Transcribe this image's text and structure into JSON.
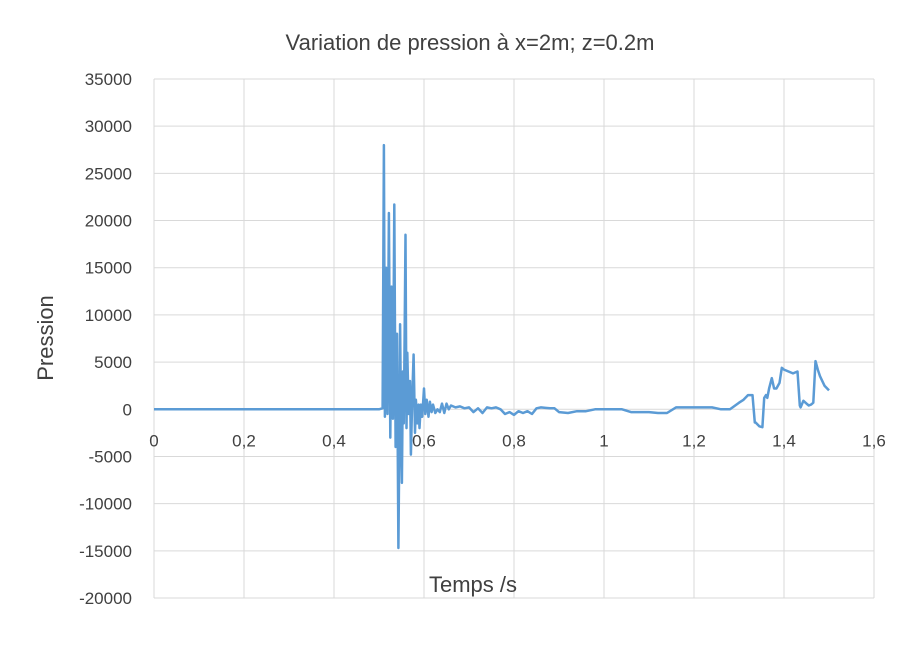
{
  "chart_data": {
    "type": "line",
    "title": "Variation de pression à x=2m; z=0.2m",
    "xlabel": "Temps /s",
    "ylabel": "Pression",
    "xlim": [
      0,
      1.6
    ],
    "ylim": [
      -20000,
      35000
    ],
    "x_ticks": [
      "0",
      "0,2",
      "0,4",
      "0,6",
      "0,8",
      "1",
      "1,2",
      "1,4",
      "1,6"
    ],
    "y_ticks": [
      "35000",
      "30000",
      "25000",
      "20000",
      "15000",
      "10000",
      "5000",
      "0",
      "-5000",
      "-10000",
      "-15000",
      "-20000"
    ],
    "grid": true,
    "legend": "none",
    "colors": {
      "series": "#5b9bd5",
      "grid": "#d9d9d9",
      "text": "#404040"
    },
    "series": [
      {
        "x": [
          0,
          0.1,
          0.2,
          0.3,
          0.4,
          0.5,
          0.508,
          0.511,
          0.513,
          0.516,
          0.519,
          0.522,
          0.525,
          0.528,
          0.531,
          0.534,
          0.537,
          0.54,
          0.543,
          0.545,
          0.547,
          0.549,
          0.551,
          0.553,
          0.555,
          0.557,
          0.559,
          0.561,
          0.563,
          0.566,
          0.569,
          0.571,
          0.574,
          0.577,
          0.58,
          0.582,
          0.585,
          0.588,
          0.59,
          0.593,
          0.596,
          0.6,
          0.603,
          0.606,
          0.61,
          0.613,
          0.617,
          0.62,
          0.625,
          0.63,
          0.635,
          0.64,
          0.645,
          0.65,
          0.655,
          0.66,
          0.67,
          0.68,
          0.69,
          0.7,
          0.71,
          0.72,
          0.73,
          0.74,
          0.75,
          0.76,
          0.77,
          0.78,
          0.79,
          0.8,
          0.81,
          0.82,
          0.83,
          0.84,
          0.85,
          0.86,
          0.87,
          0.88,
          0.89,
          0.9,
          0.92,
          0.94,
          0.96,
          0.98,
          1.0,
          1.02,
          1.04,
          1.06,
          1.08,
          1.1,
          1.12,
          1.14,
          1.16,
          1.17,
          1.2,
          1.24,
          1.26,
          1.28,
          1.3,
          1.31,
          1.32,
          1.33,
          1.335,
          1.337,
          1.345,
          1.352,
          1.356,
          1.36,
          1.363,
          1.367,
          1.373,
          1.378,
          1.383,
          1.39,
          1.395,
          1.4,
          1.41,
          1.42,
          1.43,
          1.435,
          1.437,
          1.443,
          1.45,
          1.455,
          1.46,
          1.465,
          1.47,
          1.475,
          1.48,
          1.49,
          1.5
        ],
        "values": [
          0,
          0,
          0,
          0,
          0,
          0,
          100,
          28000,
          -800,
          15000,
          -500,
          20800,
          -3000,
          13000,
          -1000,
          21700,
          -4000,
          8000,
          -14700,
          -4000,
          9000,
          -2500,
          -7800,
          4000,
          -1500,
          7500,
          18500,
          -2000,
          6000,
          -500,
          3000,
          -4800,
          1500,
          5800,
          -2500,
          1000,
          -1500,
          500,
          -2000,
          500,
          -800,
          2200,
          -500,
          1000,
          -800,
          800,
          -300,
          500,
          -400,
          0,
          -300,
          600,
          -400,
          600,
          0,
          400,
          200,
          300,
          100,
          200,
          -300,
          100,
          -400,
          200,
          100,
          200,
          0,
          -500,
          -300,
          -600,
          -200,
          -400,
          -200,
          -500,
          100,
          200,
          150,
          100,
          100,
          -300,
          -400,
          -200,
          -200,
          0,
          0,
          0,
          0,
          -300,
          -300,
          -300,
          -400,
          -400,
          200,
          200,
          200,
          200,
          0,
          0,
          700,
          1000,
          1500,
          1500,
          -1400,
          -1400,
          -1800,
          -1900,
          1200,
          1500,
          1200,
          2200,
          3300,
          2200,
          2200,
          2800,
          4400,
          4200,
          4000,
          3800,
          4000,
          400,
          200,
          900,
          600,
          400,
          500,
          700,
          5100,
          4200,
          3500,
          2500,
          2000
        ]
      }
    ]
  }
}
